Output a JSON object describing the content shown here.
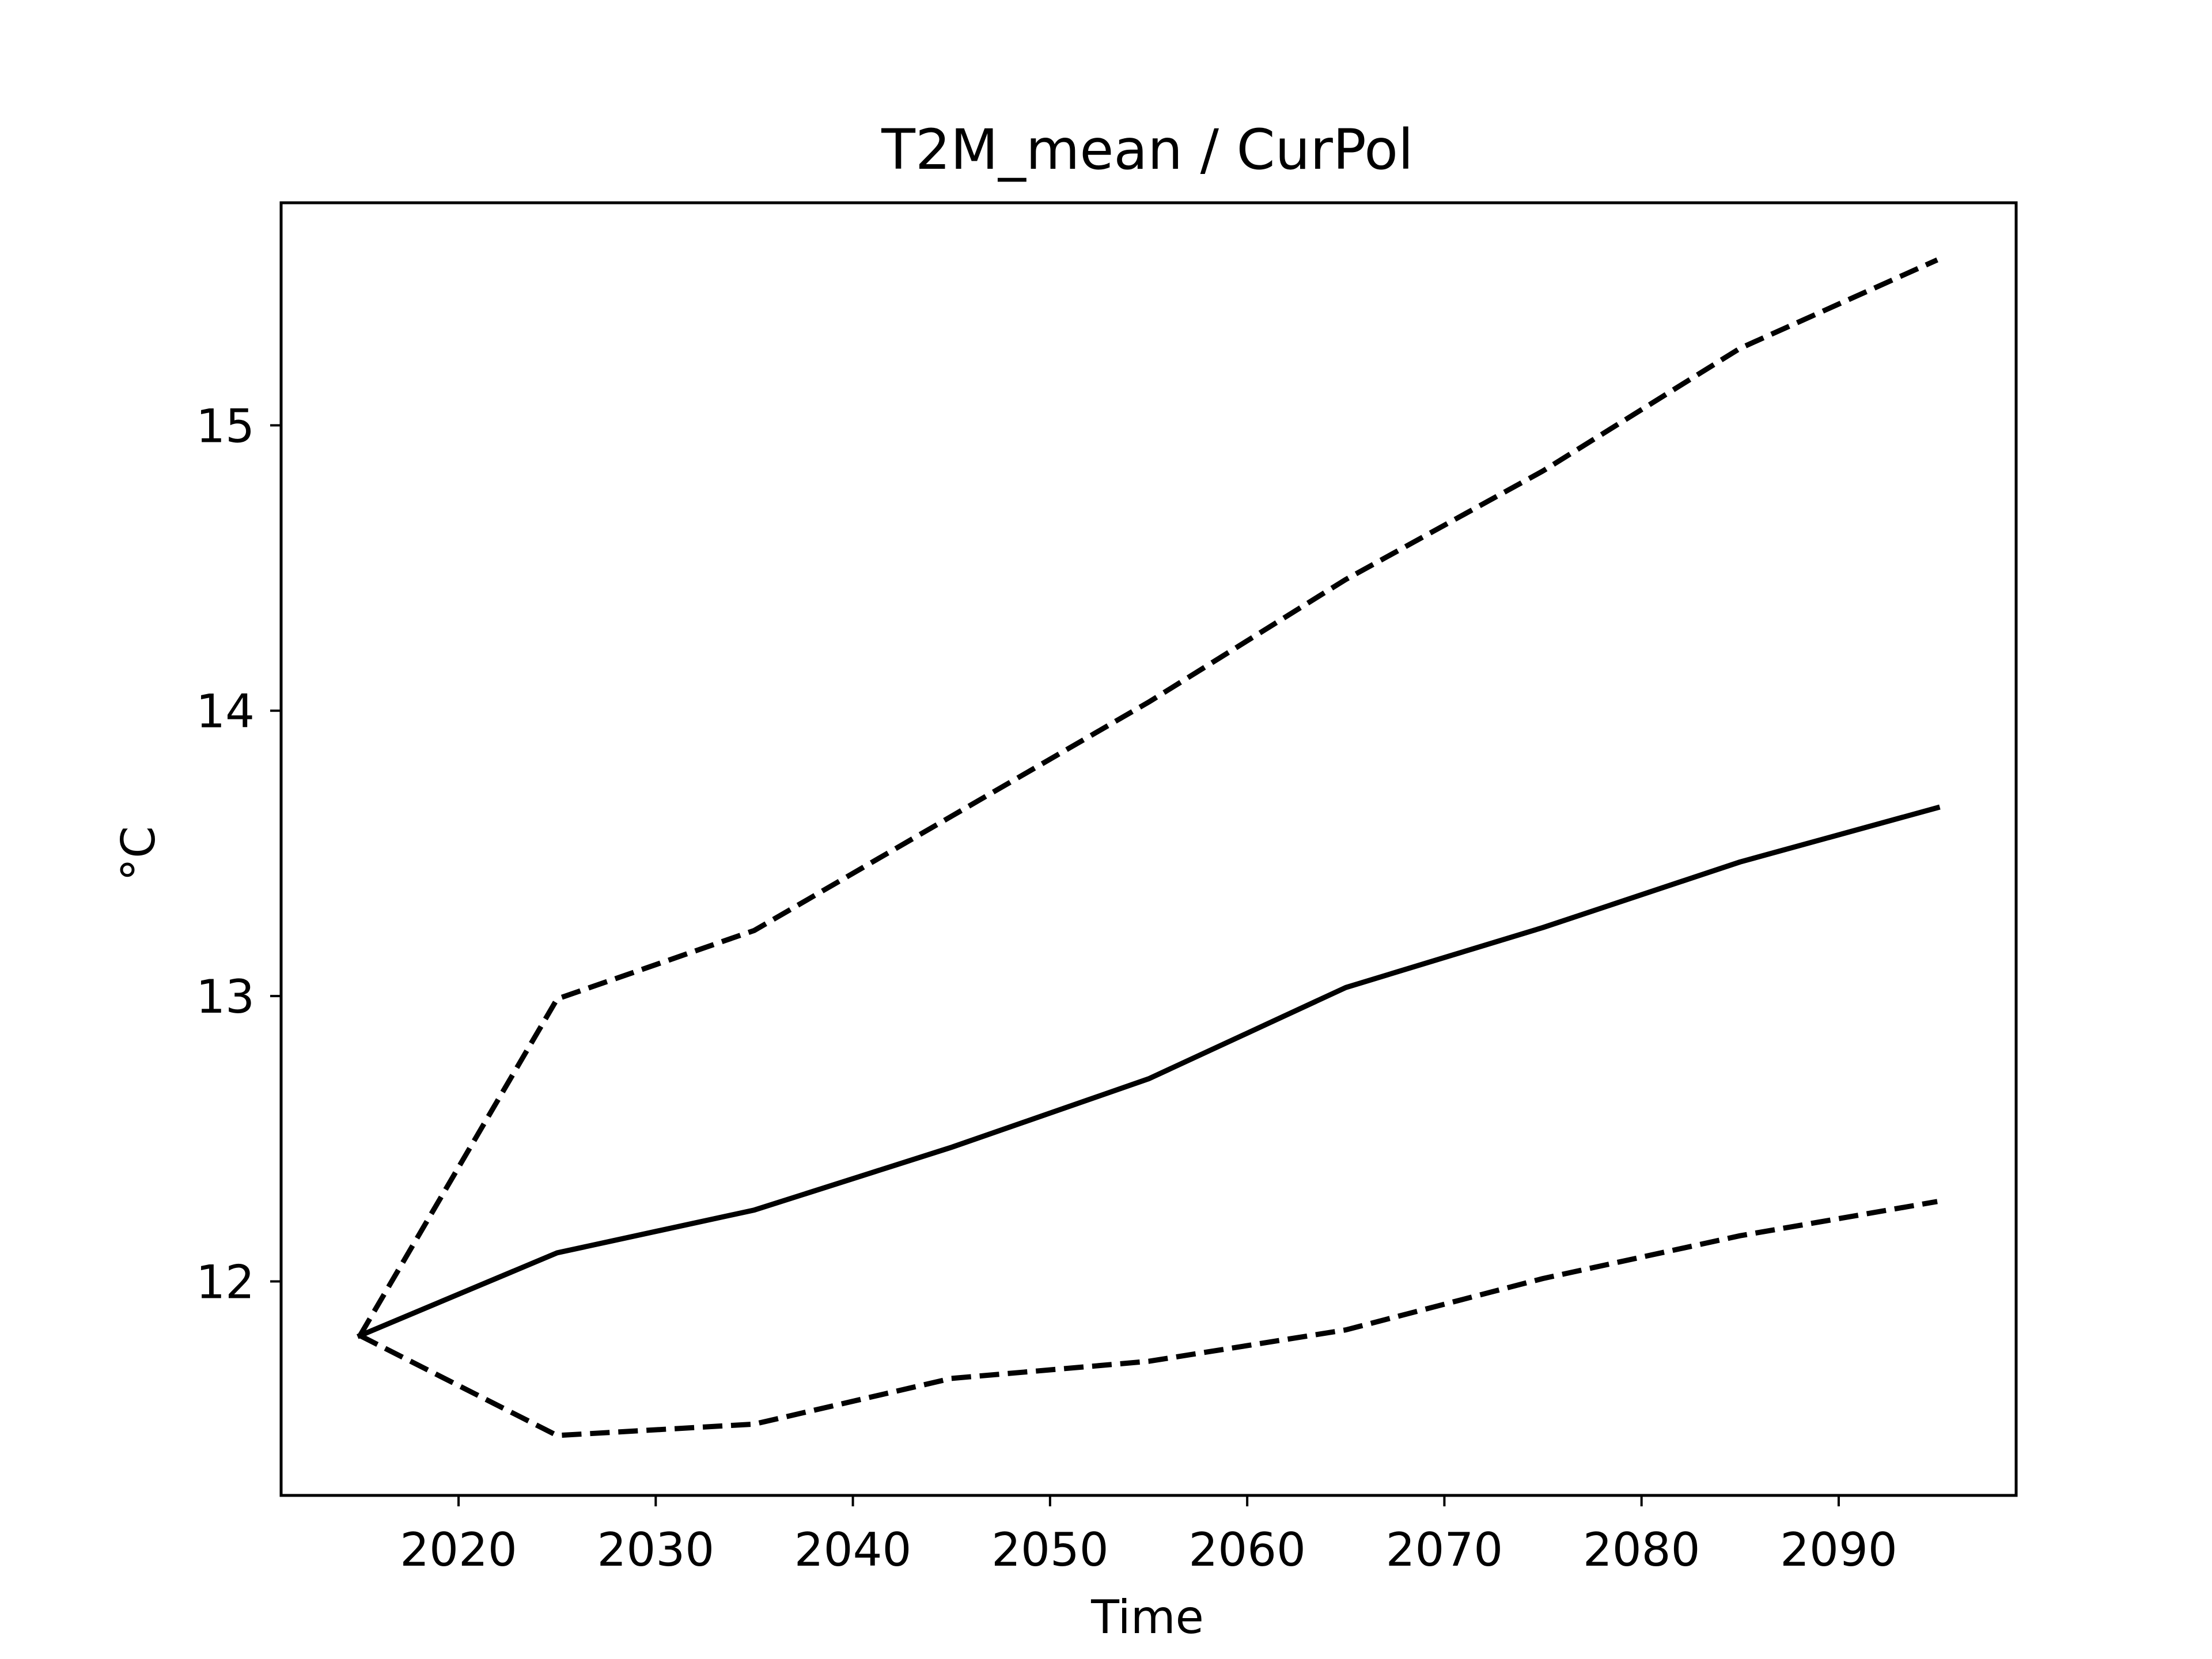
{
  "chart_data": {
    "type": "line",
    "title": "T2M_mean / CurPol",
    "xlabel": "Time",
    "ylabel": "°C",
    "xlim": [
      2011,
      2099
    ],
    "ylim": [
      11.25,
      15.78
    ],
    "xticks": [
      2020,
      2030,
      2040,
      2050,
      2060,
      2070,
      2080,
      2090
    ],
    "yticks": [
      12,
      13,
      14,
      15
    ],
    "grid": false,
    "legend": null,
    "x": [
      2015,
      2025,
      2035,
      2045,
      2055,
      2065,
      2075,
      2085,
      2095
    ],
    "series": [
      {
        "style": "solid",
        "color": "#000000",
        "values": [
          11.81,
          12.1,
          12.25,
          12.47,
          12.71,
          13.03,
          13.24,
          13.47,
          13.66
        ]
      },
      {
        "style": "dashed",
        "color": "#000000",
        "values": [
          11.81,
          12.99,
          13.23,
          13.63,
          14.03,
          14.46,
          14.84,
          15.27,
          15.58
        ]
      },
      {
        "style": "dashed",
        "color": "#000000",
        "values": [
          11.81,
          11.46,
          11.5,
          11.66,
          11.72,
          11.83,
          12.01,
          12.16,
          12.28
        ]
      }
    ]
  }
}
